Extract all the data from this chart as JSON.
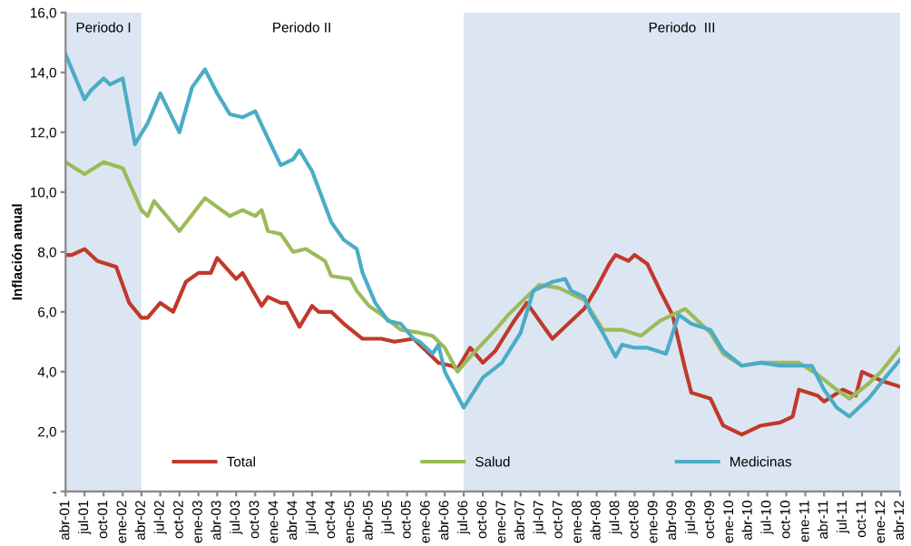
{
  "chart_data": {
    "type": "line",
    "ylabel": "Inflación anual",
    "ylim": [
      0,
      16
    ],
    "yticks": [
      {
        "value": 0,
        "label": "-"
      },
      {
        "value": 2,
        "label": "2,0"
      },
      {
        "value": 4,
        "label": "4,0"
      },
      {
        "value": 6,
        "label": "6,0"
      },
      {
        "value": 8,
        "label": "8,0"
      },
      {
        "value": 10,
        "label": "10,0"
      },
      {
        "value": 12,
        "label": "12,0"
      },
      {
        "value": 14,
        "label": "14,0"
      },
      {
        "value": 16,
        "label": "16,0"
      }
    ],
    "xlim": [
      "2001-04",
      "2012-04"
    ],
    "xticks": [
      {
        "value": "2001-04",
        "label": "abr-01"
      },
      {
        "value": "2001-07",
        "label": "jul-01"
      },
      {
        "value": "2001-10",
        "label": "oct-01"
      },
      {
        "value": "2002-01",
        "label": "ene-02"
      },
      {
        "value": "2002-04",
        "label": "abr-02"
      },
      {
        "value": "2002-07",
        "label": "jul-02"
      },
      {
        "value": "2002-10",
        "label": "oct-02"
      },
      {
        "value": "2003-01",
        "label": "ene-03"
      },
      {
        "value": "2003-04",
        "label": "abr-03"
      },
      {
        "value": "2003-07",
        "label": "jul-03"
      },
      {
        "value": "2003-10",
        "label": "oct-03"
      },
      {
        "value": "2004-01",
        "label": "ene-04"
      },
      {
        "value": "2004-04",
        "label": "abr-04"
      },
      {
        "value": "2004-07",
        "label": "jul-04"
      },
      {
        "value": "2004-10",
        "label": "oct-04"
      },
      {
        "value": "2005-01",
        "label": "ene-05"
      },
      {
        "value": "2005-04",
        "label": "abr-05"
      },
      {
        "value": "2005-07",
        "label": "jul-05"
      },
      {
        "value": "2005-10",
        "label": "oct-05"
      },
      {
        "value": "2006-01",
        "label": "ene-06"
      },
      {
        "value": "2006-04",
        "label": "abr-06"
      },
      {
        "value": "2006-07",
        "label": "jul-06"
      },
      {
        "value": "2006-10",
        "label": "oct-06"
      },
      {
        "value": "2007-01",
        "label": "ene-07"
      },
      {
        "value": "2007-04",
        "label": "abr-07"
      },
      {
        "value": "2007-07",
        "label": "jul-07"
      },
      {
        "value": "2007-10",
        "label": "oct-07"
      },
      {
        "value": "2008-01",
        "label": "ene-08"
      },
      {
        "value": "2008-04",
        "label": "abr-08"
      },
      {
        "value": "2008-07",
        "label": "jul-08"
      },
      {
        "value": "2008-10",
        "label": "oct-08"
      },
      {
        "value": "2009-01",
        "label": "ene-09"
      },
      {
        "value": "2009-04",
        "label": "abr-09"
      },
      {
        "value": "2009-07",
        "label": "jul-09"
      },
      {
        "value": "2009-10",
        "label": "oct-09"
      },
      {
        "value": "2010-01",
        "label": "ene-10"
      },
      {
        "value": "2010-04",
        "label": "abr-10"
      },
      {
        "value": "2010-07",
        "label": "jul-10"
      },
      {
        "value": "2010-10",
        "label": "oct-10"
      },
      {
        "value": "2011-01",
        "label": "ene-11"
      },
      {
        "value": "2011-04",
        "label": "abr-11"
      },
      {
        "value": "2011-07",
        "label": "jul-11"
      },
      {
        "value": "2011-10",
        "label": "oct-11"
      },
      {
        "value": "2012-01",
        "label": "ene-12"
      },
      {
        "value": "2012-04",
        "label": "abr-12"
      }
    ],
    "bands": [
      {
        "axis": "x",
        "from": "2001-04",
        "to": "2002-04",
        "label": "Periodo I",
        "color": "#dce6f2"
      },
      {
        "axis": "x",
        "from": "2006-07",
        "to": "2012-04",
        "label": "Periodo  III",
        "color": "#dce6f2"
      }
    ],
    "annotations": [
      "Periodo II"
    ],
    "legend": "bottom",
    "grid": false,
    "line_style": "solid",
    "marker": "none",
    "series": [
      {
        "name": "Total",
        "color": "#c0392b",
        "x": [
          "2001-04",
          "2001-05",
          "2001-07",
          "2001-09",
          "2001-12",
          "2002-01",
          "2002-02",
          "2002-04",
          "2002-05",
          "2002-07",
          "2002-09",
          "2002-11",
          "2003-01",
          "2003-03",
          "2003-04",
          "2003-07",
          "2003-08",
          "2003-11",
          "2003-12",
          "2004-02",
          "2004-03",
          "2004-05",
          "2004-07",
          "2004-08",
          "2004-10",
          "2004-12",
          "2005-03",
          "2005-06",
          "2005-08",
          "2005-11",
          "2006-01",
          "2006-03",
          "2006-05",
          "2006-06",
          "2006-08",
          "2006-10",
          "2006-12",
          "2007-03",
          "2007-05",
          "2007-07",
          "2007-09",
          "2007-11",
          "2008-02",
          "2008-04",
          "2008-06",
          "2008-07",
          "2008-09",
          "2008-10",
          "2008-12",
          "2009-02",
          "2009-04",
          "2009-06",
          "2009-07",
          "2009-10",
          "2009-12",
          "2010-03",
          "2010-06",
          "2010-09",
          "2010-11",
          "2010-12",
          "2011-03",
          "2011-04",
          "2011-07",
          "2011-09",
          "2011-10",
          "2012-01",
          "2012-04"
        ],
        "values": [
          7.9,
          7.9,
          8.1,
          7.7,
          7.5,
          6.9,
          6.3,
          5.8,
          5.8,
          6.3,
          6.0,
          7.0,
          7.3,
          7.3,
          7.8,
          7.1,
          7.3,
          6.2,
          6.5,
          6.3,
          6.3,
          5.5,
          6.2,
          6.0,
          6.0,
          5.6,
          5.1,
          5.1,
          5.0,
          5.1,
          4.7,
          4.3,
          4.2,
          4.1,
          4.8,
          4.3,
          4.7,
          5.7,
          6.3,
          5.7,
          5.1,
          5.5,
          6.1,
          6.8,
          7.6,
          7.9,
          7.7,
          7.9,
          7.6,
          6.7,
          5.9,
          4.1,
          3.3,
          3.1,
          2.2,
          1.9,
          2.2,
          2.3,
          2.5,
          3.4,
          3.2,
          3.0,
          3.4,
          3.2,
          4.0,
          3.7,
          3.5
        ]
      },
      {
        "name": "Salud",
        "color": "#9bbb59",
        "x": [
          "2001-04",
          "2001-07",
          "2001-10",
          "2002-01",
          "2002-04",
          "2002-05",
          "2002-06",
          "2002-10",
          "2003-02",
          "2003-06",
          "2003-08",
          "2003-10",
          "2003-11",
          "2003-12",
          "2004-02",
          "2004-04",
          "2004-06",
          "2004-09",
          "2004-10",
          "2005-01",
          "2005-02",
          "2005-04",
          "2005-06",
          "2005-09",
          "2005-12",
          "2006-02",
          "2006-04",
          "2006-06",
          "2006-08",
          "2006-12",
          "2007-02",
          "2007-05",
          "2007-07",
          "2007-10",
          "2008-01",
          "2008-02",
          "2008-05",
          "2008-08",
          "2008-11",
          "2009-02",
          "2009-06",
          "2009-10",
          "2009-12",
          "2010-03",
          "2010-06",
          "2010-12",
          "2011-03",
          "2011-06",
          "2011-08",
          "2011-11",
          "2012-01",
          "2012-04"
        ],
        "values": [
          11.0,
          10.6,
          11.0,
          10.8,
          9.4,
          9.2,
          9.7,
          8.7,
          9.8,
          9.2,
          9.4,
          9.2,
          9.4,
          8.7,
          8.6,
          8.0,
          8.1,
          7.7,
          7.2,
          7.1,
          6.7,
          6.2,
          5.9,
          5.4,
          5.3,
          5.2,
          4.8,
          4.0,
          4.5,
          5.4,
          5.9,
          6.5,
          6.9,
          6.8,
          6.5,
          6.4,
          5.4,
          5.4,
          5.2,
          5.7,
          6.1,
          5.3,
          4.6,
          4.2,
          4.3,
          4.3,
          3.9,
          3.4,
          3.1,
          3.6,
          4.0,
          4.8
        ]
      },
      {
        "name": "Medicinas",
        "color": "#4bacc6",
        "x": [
          "2001-04",
          "2001-07",
          "2001-08",
          "2001-10",
          "2001-11",
          "2002-01",
          "2002-03",
          "2002-05",
          "2002-07",
          "2002-10",
          "2002-12",
          "2003-02",
          "2003-04",
          "2003-06",
          "2003-08",
          "2003-10",
          "2003-12",
          "2004-02",
          "2004-04",
          "2004-05",
          "2004-07",
          "2004-10",
          "2004-12",
          "2005-02",
          "2005-03",
          "2005-05",
          "2005-07",
          "2005-09",
          "2005-11",
          "2005-12",
          "2006-02",
          "2006-03",
          "2006-04",
          "2006-07",
          "2006-10",
          "2007-01",
          "2007-04",
          "2007-06",
          "2007-09",
          "2007-11",
          "2007-12",
          "2008-02",
          "2008-03",
          "2008-05",
          "2008-07",
          "2008-08",
          "2008-10",
          "2008-12",
          "2009-03",
          "2009-05",
          "2009-07",
          "2009-10",
          "2009-12",
          "2010-03",
          "2010-06",
          "2010-09",
          "2010-12",
          "2011-02",
          "2011-04",
          "2011-06",
          "2011-08",
          "2011-10",
          "2011-11",
          "2012-02",
          "2012-04"
        ],
        "values": [
          14.6,
          13.1,
          13.4,
          13.8,
          13.6,
          13.8,
          11.6,
          12.3,
          13.3,
          12.0,
          13.5,
          14.1,
          13.3,
          12.6,
          12.5,
          12.7,
          11.8,
          10.9,
          11.1,
          11.4,
          10.7,
          9.0,
          8.4,
          8.1,
          7.3,
          6.3,
          5.7,
          5.6,
          5.1,
          5.0,
          4.6,
          4.9,
          4.0,
          2.8,
          3.8,
          4.3,
          5.3,
          6.7,
          7.0,
          7.1,
          6.7,
          6.5,
          6.0,
          5.3,
          4.5,
          4.9,
          4.8,
          4.8,
          4.6,
          5.9,
          5.6,
          5.4,
          4.7,
          4.2,
          4.3,
          4.2,
          4.2,
          4.2,
          3.4,
          2.8,
          2.5,
          2.9,
          3.1,
          3.9,
          4.4
        ]
      }
    ]
  }
}
